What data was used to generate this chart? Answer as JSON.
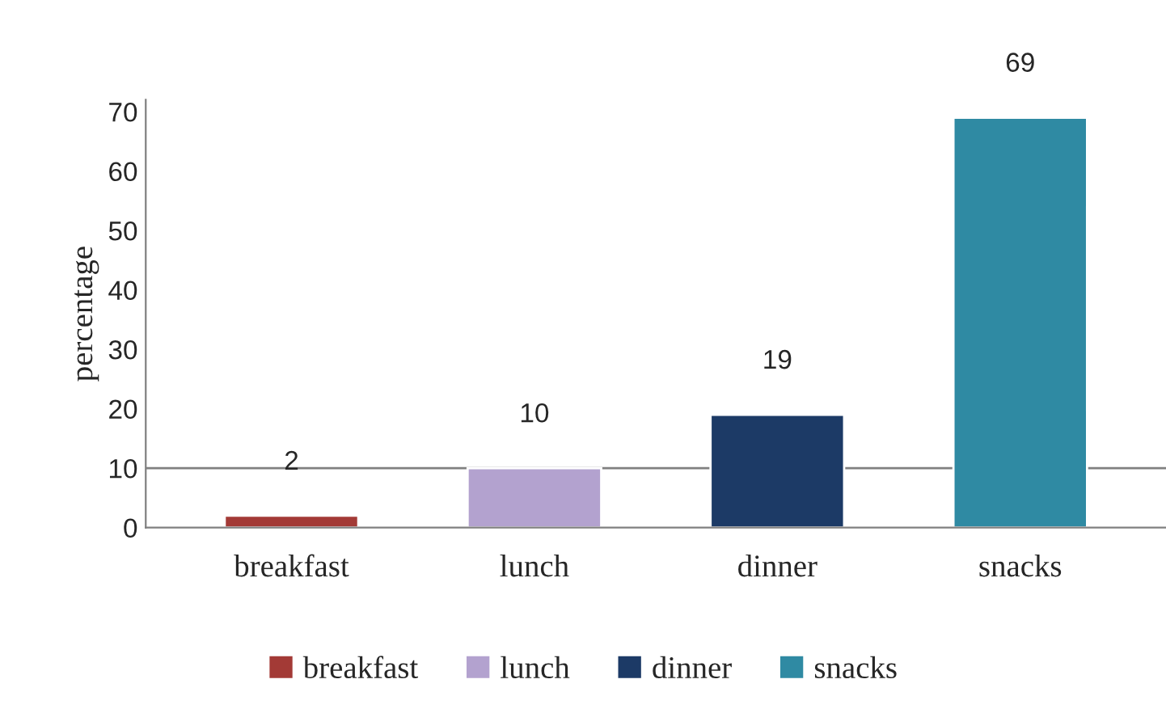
{
  "chart_data": {
    "type": "bar",
    "ylabel": "percentage",
    "categories": [
      "breakfast",
      "lunch",
      "dinner",
      "snacks"
    ],
    "series": [
      {
        "name": "breakfast",
        "color": "#a33a36",
        "values": [
          2,
          null,
          null,
          null
        ]
      },
      {
        "name": "lunch",
        "color": "#b3a2cf",
        "values": [
          null,
          10,
          null,
          null
        ]
      },
      {
        "name": "dinner",
        "color": "#1c3a66",
        "values": [
          null,
          null,
          19,
          null
        ]
      },
      {
        "name": "snacks",
        "color": "#2f8aa3",
        "values": [
          null,
          null,
          null,
          69
        ]
      }
    ],
    "ylim": [
      0,
      72
    ],
    "yticks": [
      0,
      10,
      20,
      30,
      40,
      50,
      60,
      70
    ],
    "ref_lines": [
      {
        "axis": "y",
        "value": 10,
        "color": "#808080"
      }
    ],
    "data_labels": true,
    "legend": "bottom",
    "grid": false
  }
}
